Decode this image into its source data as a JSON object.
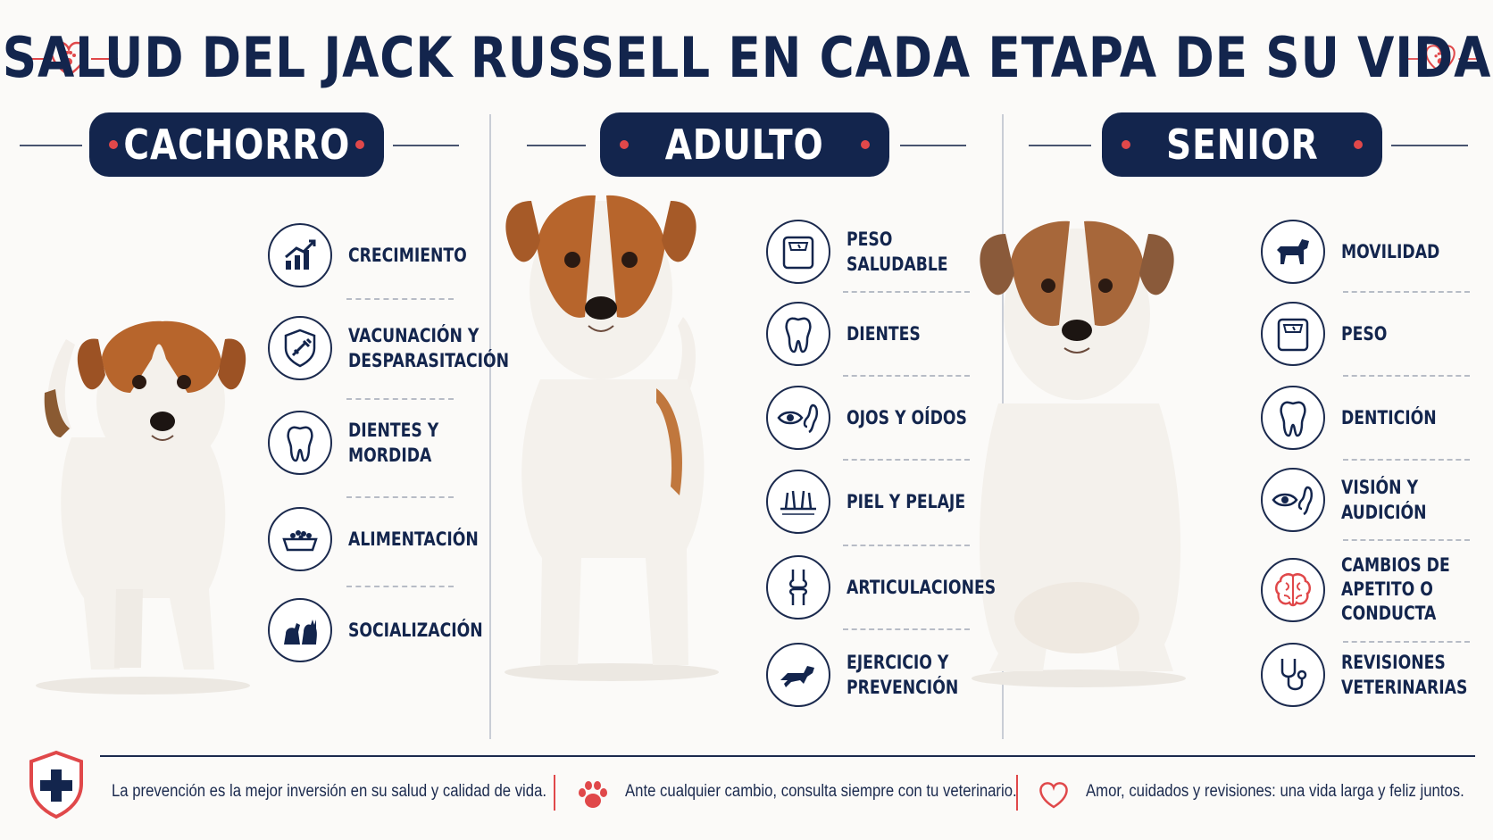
{
  "title": "SALUD DEL JACK RUSSELL EN CADA ETAPA DE SU VIDA",
  "colors": {
    "navy": "#13254d",
    "accent_red": "#e0484a",
    "background": "#fbfaf8"
  },
  "stages": [
    {
      "name": "CACHORRO",
      "items": [
        {
          "icon": "growth-chart-icon",
          "label": "CRECIMIENTO"
        },
        {
          "icon": "vaccine-shield-icon",
          "label": "VACUNACIÓN Y\nDESPARASITACIÓN"
        },
        {
          "icon": "tooth-icon",
          "label": "DIENTES Y\nMORDIDA"
        },
        {
          "icon": "food-bowl-icon",
          "label": "ALIMENTACIÓN"
        },
        {
          "icon": "dog-cat-icon",
          "label": "SOCIALIZACIÓN"
        }
      ]
    },
    {
      "name": "ADULTO",
      "items": [
        {
          "icon": "scale-icon",
          "label": "PESO SALUDABLE"
        },
        {
          "icon": "tooth-icon",
          "label": "DIENTES"
        },
        {
          "icon": "eye-ear-icon",
          "label": "OJOS Y OÍDOS"
        },
        {
          "icon": "skin-hair-icon",
          "label": "PIEL Y PELAJE"
        },
        {
          "icon": "joint-icon",
          "label": "ARTICULACIONES"
        },
        {
          "icon": "running-dog-icon",
          "label": "EJERCICIO Y\nPREVENCIÓN"
        }
      ]
    },
    {
      "name": "SENIOR",
      "items": [
        {
          "icon": "walking-dog-icon",
          "label": "MOVILIDAD"
        },
        {
          "icon": "scale-icon",
          "label": "PESO"
        },
        {
          "icon": "tooth-icon",
          "label": "DENTICIÓN"
        },
        {
          "icon": "eye-ear-icon",
          "label": "VISIÓN Y\nAUDICIÓN"
        },
        {
          "icon": "brain-icon",
          "label": "CAMBIOS DE\nAPETITO O\nCONDUCTA"
        },
        {
          "icon": "stethoscope-icon",
          "label": "REVISIONES\nVETERINARIAS"
        }
      ]
    }
  ],
  "footer": {
    "messages": [
      {
        "icon": "medical-shield-icon",
        "text": "La prevención es la mejor inversión en su salud y calidad de vida."
      },
      {
        "icon": "paw-icon",
        "text": "Ante cualquier cambio, consulta siempre con tu veterinario."
      },
      {
        "icon": "heart-icon",
        "text": "Amor, cuidados y revisiones: una vida larga y feliz juntos."
      }
    ]
  }
}
